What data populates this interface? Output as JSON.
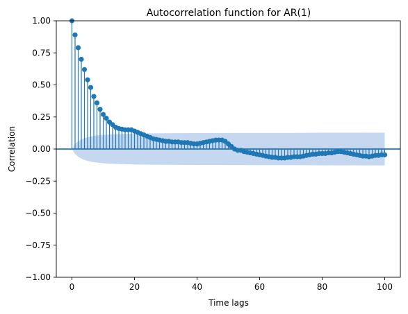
{
  "chart_data": {
    "type": "scatter",
    "subtype": "stem",
    "title": "Autocorrelation function for AR(1)",
    "xlabel": "Time lags",
    "ylabel": "Correlation",
    "xlim": [
      -5,
      105
    ],
    "ylim": [
      -1.0,
      1.0
    ],
    "xticks": [
      0,
      20,
      40,
      60,
      80,
      100
    ],
    "yticks": [
      -1.0,
      -0.75,
      -0.5,
      -0.25,
      0.0,
      0.25,
      0.5,
      0.75,
      1.0
    ],
    "xtick_labels": [
      "0",
      "20",
      "40",
      "60",
      "80",
      "100"
    ],
    "ytick_labels": [
      "−1.00",
      "−0.75",
      "−0.50",
      "−0.25",
      "0.00",
      "0.25",
      "0.50",
      "0.75",
      "1.00"
    ],
    "grid": false,
    "colors": {
      "series": "#1f77b4",
      "confidence_band": "#aec7e8"
    },
    "series": [
      {
        "lags": [
          0,
          1,
          2,
          3,
          4,
          5,
          6,
          7,
          8,
          9,
          10,
          11,
          12,
          13,
          14,
          15,
          16,
          17,
          18,
          19,
          20,
          21,
          22,
          23,
          24,
          25,
          26,
          27,
          28,
          29,
          30,
          31,
          32,
          33,
          34,
          35,
          36,
          37,
          38,
          39,
          40,
          41,
          42,
          43,
          44,
          45,
          46,
          47,
          48,
          49,
          50,
          51,
          52,
          53,
          54,
          55,
          56,
          57,
          58,
          59,
          60,
          61,
          62,
          63,
          64,
          65,
          66,
          67,
          68,
          69,
          70,
          71,
          72,
          73,
          74,
          75,
          76,
          77,
          78,
          79,
          80,
          81,
          82,
          83,
          84,
          85,
          86,
          87,
          88,
          89,
          90,
          91,
          92,
          93,
          94,
          95,
          96,
          97,
          98,
          99,
          100
        ],
        "values": [
          1.0,
          0.89,
          0.79,
          0.7,
          0.62,
          0.54,
          0.48,
          0.41,
          0.36,
          0.31,
          0.27,
          0.24,
          0.21,
          0.19,
          0.17,
          0.16,
          0.155,
          0.15,
          0.15,
          0.15,
          0.14,
          0.13,
          0.12,
          0.11,
          0.1,
          0.09,
          0.08,
          0.075,
          0.07,
          0.065,
          0.06,
          0.06,
          0.055,
          0.055,
          0.055,
          0.05,
          0.05,
          0.05,
          0.045,
          0.04,
          0.04,
          0.045,
          0.05,
          0.055,
          0.06,
          0.065,
          0.07,
          0.07,
          0.07,
          0.06,
          0.04,
          0.02,
          0.0,
          -0.01,
          -0.01,
          -0.02,
          -0.025,
          -0.03,
          -0.035,
          -0.04,
          -0.045,
          -0.05,
          -0.055,
          -0.06,
          -0.065,
          -0.065,
          -0.07,
          -0.07,
          -0.07,
          -0.065,
          -0.065,
          -0.06,
          -0.06,
          -0.06,
          -0.055,
          -0.05,
          -0.045,
          -0.04,
          -0.04,
          -0.035,
          -0.035,
          -0.035,
          -0.03,
          -0.03,
          -0.025,
          -0.02,
          -0.02,
          -0.025,
          -0.03,
          -0.035,
          -0.04,
          -0.045,
          -0.05,
          -0.055,
          -0.055,
          -0.06,
          -0.055,
          -0.05,
          -0.05,
          -0.045,
          -0.045
        ]
      }
    ],
    "confidence_band": {
      "lags": [
        0,
        1,
        2,
        3,
        4,
        5,
        6,
        7,
        8,
        10,
        12,
        15,
        20,
        25,
        30,
        40,
        50,
        60,
        70,
        80,
        90,
        100
      ],
      "upper": [
        0.0,
        0.04,
        0.06,
        0.075,
        0.085,
        0.092,
        0.098,
        0.103,
        0.106,
        0.111,
        0.114,
        0.117,
        0.12,
        0.122,
        0.123,
        0.124,
        0.125,
        0.126,
        0.126,
        0.127,
        0.127,
        0.128
      ],
      "lower": [
        0.0,
        -0.04,
        -0.06,
        -0.075,
        -0.085,
        -0.092,
        -0.098,
        -0.103,
        -0.106,
        -0.111,
        -0.114,
        -0.117,
        -0.12,
        -0.122,
        -0.123,
        -0.124,
        -0.125,
        -0.126,
        -0.126,
        -0.127,
        -0.127,
        -0.128
      ]
    }
  }
}
